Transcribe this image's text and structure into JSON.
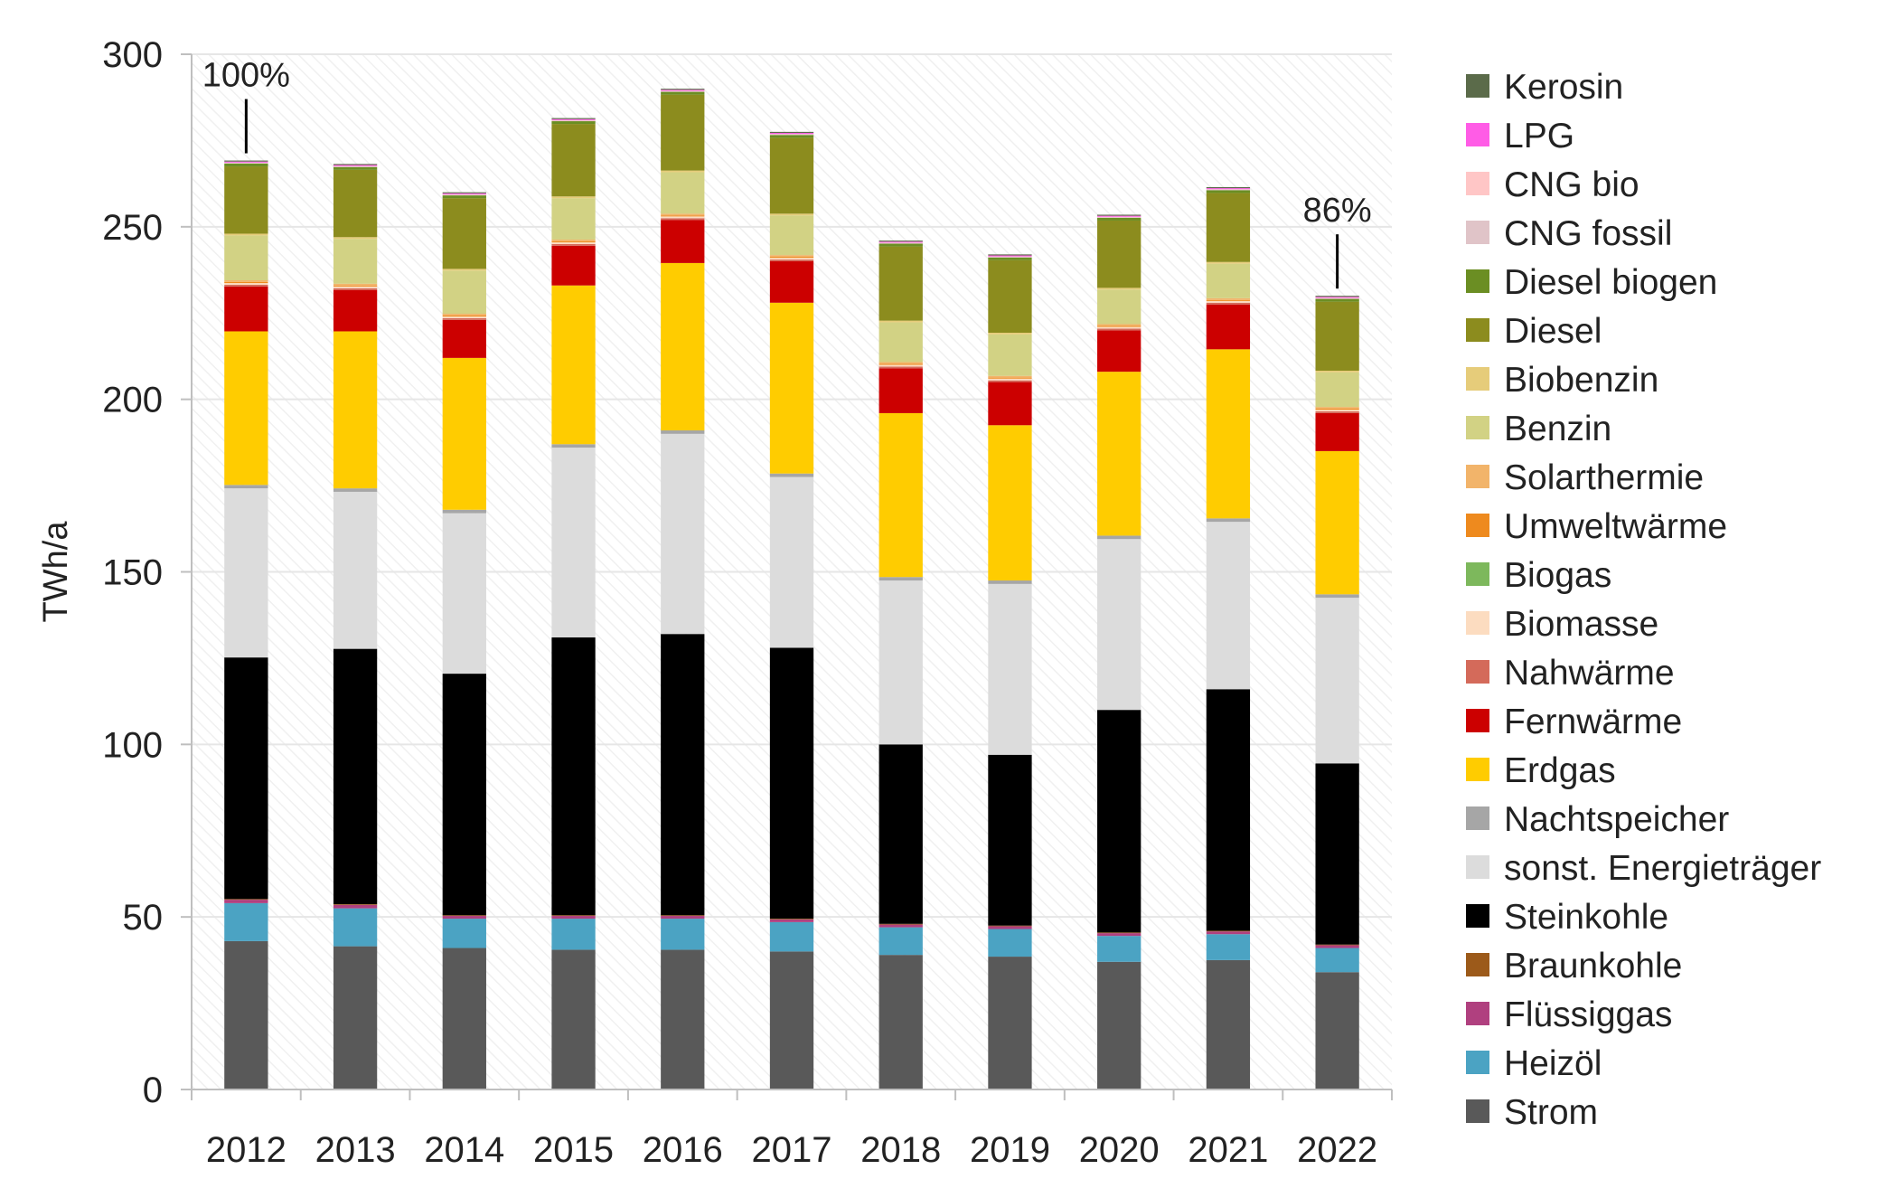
{
  "chart_data": {
    "type": "bar",
    "stacked": true,
    "title": "",
    "xlabel": "",
    "ylabel": "TWh/a",
    "ylim": [
      0,
      300
    ],
    "yticks": [
      0,
      50,
      100,
      150,
      200,
      250,
      300
    ],
    "grid": true,
    "legend_position": "right",
    "categories": [
      "2012",
      "2013",
      "2014",
      "2015",
      "2016",
      "2017",
      "2018",
      "2019",
      "2020",
      "2021",
      "2022"
    ],
    "series": [
      {
        "name": "Strom",
        "color": "#595959",
        "values": [
          43,
          41.5,
          41,
          40.5,
          40.5,
          40,
          39,
          38.5,
          37,
          37.5,
          34
        ]
      },
      {
        "name": "Heizöl",
        "color": "#4BA3C3",
        "values": [
          11,
          11,
          8.5,
          9,
          9,
          8.5,
          8,
          8,
          7.5,
          7.5,
          7
        ]
      },
      {
        "name": "Flüssiggas",
        "color": "#B0407F",
        "values": [
          1,
          1,
          0.8,
          0.8,
          0.8,
          0.8,
          0.8,
          0.8,
          0.8,
          0.8,
          0.8
        ]
      },
      {
        "name": "Braunkohle",
        "color": "#9C5A1A",
        "values": [
          0.2,
          0.2,
          0.2,
          0.2,
          0.2,
          0.2,
          0.2,
          0.2,
          0.2,
          0.2,
          0.2
        ]
      },
      {
        "name": "Steinkohle",
        "color": "#000000",
        "values": [
          70,
          74,
          70,
          80.5,
          81.5,
          78.5,
          52,
          49.5,
          64.5,
          70,
          52.5
        ]
      },
      {
        "name": "sonst. Energieträger",
        "color": "#DCDCDC",
        "values": [
          49,
          45.5,
          46.5,
          55,
          58,
          49.5,
          47.5,
          49.5,
          49.5,
          48.5,
          48
        ]
      },
      {
        "name": "Nachtspeicher",
        "color": "#A6A6A6",
        "values": [
          1,
          1,
          1,
          1,
          1,
          1,
          1,
          1,
          1,
          1,
          1
        ]
      },
      {
        "name": "Erdgas",
        "color": "#FFCC00",
        "values": [
          44.5,
          45.5,
          44,
          46,
          48.5,
          49.5,
          47.5,
          45,
          47.5,
          49,
          41.5
        ]
      },
      {
        "name": "Fernwärme",
        "color": "#CC0000",
        "values": [
          13,
          12,
          11,
          11.5,
          12.5,
          12,
          13,
          12.5,
          12,
          13,
          11
        ]
      },
      {
        "name": "Nahwärme",
        "color": "#D46A5A",
        "values": [
          0.5,
          0.5,
          0.5,
          0.5,
          0.5,
          0.5,
          0.5,
          0.5,
          0.5,
          0.5,
          0.5
        ]
      },
      {
        "name": "Biomasse",
        "color": "#FCDCC0",
        "values": [
          0.5,
          0.5,
          0.5,
          0.5,
          0.5,
          0.5,
          0.5,
          0.5,
          0.5,
          0.5,
          0.5
        ]
      },
      {
        "name": "Biogas",
        "color": "#7DB85C",
        "values": [
          0,
          0,
          0,
          0,
          0,
          0,
          0,
          0,
          0,
          0,
          0
        ]
      },
      {
        "name": "Umweltwärme",
        "color": "#EE8A1E",
        "values": [
          0.3,
          0.3,
          0.3,
          0.3,
          0.3,
          0.3,
          0.3,
          0.3,
          0.3,
          0.3,
          0.3
        ]
      },
      {
        "name": "Solarthermie",
        "color": "#F2B46A",
        "values": [
          0.5,
          0.5,
          0.5,
          0.5,
          0.5,
          0.5,
          0.5,
          0.5,
          0.5,
          0.5,
          0.5
        ]
      },
      {
        "name": "Benzin",
        "color": "#D2D284",
        "values": [
          13,
          13,
          12.5,
          12,
          12,
          11.5,
          11.5,
          12,
          10,
          10,
          10
        ]
      },
      {
        "name": "Biobenzin",
        "color": "#E6CC7A",
        "values": [
          0.5,
          0.5,
          0.5,
          0.5,
          0.5,
          0.5,
          0.5,
          0.5,
          0.5,
          0.5,
          0.5
        ]
      },
      {
        "name": "Diesel",
        "color": "#8C8C1E",
        "values": [
          19.5,
          19.5,
          20.5,
          21,
          22,
          22,
          21.5,
          21,
          19.5,
          20,
          20
        ]
      },
      {
        "name": "Diesel biogen",
        "color": "#6B8E23",
        "values": [
          0.8,
          0.8,
          0.8,
          0.8,
          0.8,
          0.8,
          0.8,
          0.8,
          0.8,
          0.8,
          0.8
        ]
      },
      {
        "name": "CNG fossil",
        "color": "#E0C4C8",
        "values": [
          0.2,
          0.2,
          0.2,
          0.2,
          0.2,
          0.2,
          0.2,
          0.2,
          0.2,
          0.2,
          0.2
        ]
      },
      {
        "name": "CNG bio",
        "color": "#FFC6C6",
        "values": [
          0.1,
          0.1,
          0.1,
          0.1,
          0.1,
          0.1,
          0.1,
          0.1,
          0.1,
          0.1,
          0.1
        ]
      },
      {
        "name": "LPG",
        "color": "#FF5CE6",
        "values": [
          0.3,
          0.3,
          0.3,
          0.3,
          0.3,
          0.3,
          0.3,
          0.3,
          0.3,
          0.3,
          0.3
        ]
      },
      {
        "name": "Kerosin",
        "color": "#5B6B4A",
        "values": [
          0.3,
          0.3,
          0.3,
          0.3,
          0.3,
          0.3,
          0.3,
          0.3,
          0.3,
          0.3,
          0.3
        ]
      }
    ],
    "annotations": [
      {
        "text": "100%",
        "category": "2012"
      },
      {
        "text": "86%",
        "category": "2022"
      }
    ]
  }
}
